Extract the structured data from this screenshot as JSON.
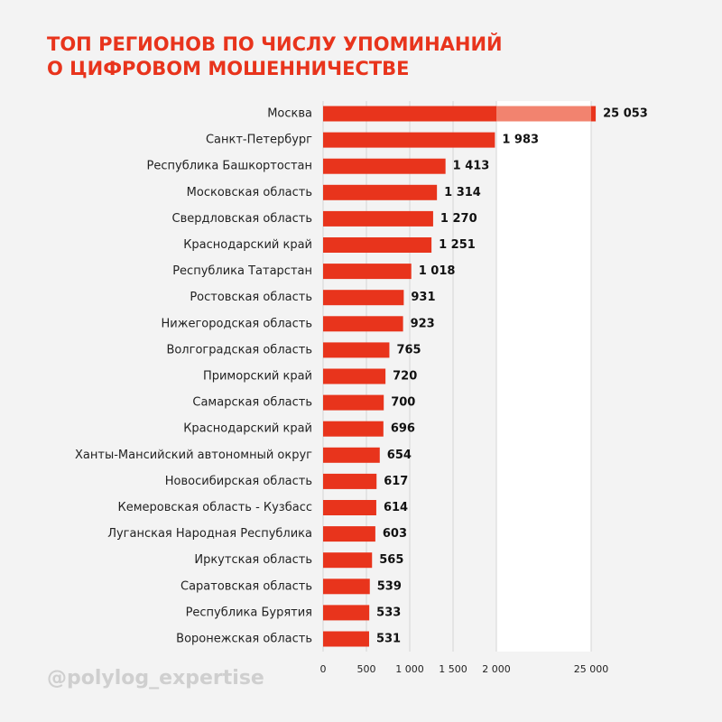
{
  "chart_data": {
    "type": "bar",
    "orientation": "horizontal",
    "title": [
      "ТОП РЕГИОНОВ ПО ЧИСЛУ УПОМИНАНИЙ",
      "О ЦИФРОВОМ МОШЕННИЧЕСТВЕ"
    ],
    "categories": [
      "Москва",
      "Санкт-Петербург",
      "Республика Башкортостан",
      "Московская область",
      "Свердловская область",
      "Краснодарский край",
      "Республика Татарстан",
      "Ростовская область",
      "Нижегородская область",
      "Волгоградская область",
      "Приморский край",
      "Самарская область",
      "Краснодарский край",
      "Ханты-Мансийский автономный округ",
      "Новосибирская область",
      "Кемеровская область - Кузбасс",
      "Луганская Народная Республика",
      "Иркутская область",
      "Саратовская область",
      "Республика Бурятия",
      "Воронежская область"
    ],
    "values": [
      25053,
      1983,
      1413,
      1314,
      1270,
      1251,
      1018,
      931,
      923,
      765,
      720,
      700,
      696,
      654,
      617,
      614,
      603,
      565,
      539,
      533,
      531
    ],
    "value_labels": [
      "25 053",
      "1 983",
      "1 413",
      "1 314",
      "1 270",
      "1 251",
      "1 018",
      "931",
      "923",
      "765",
      "720",
      "700",
      "696",
      "654",
      "617",
      "614",
      "603",
      "565",
      "539",
      "533",
      "531"
    ],
    "color": "#e8341c",
    "xlim": [
      0,
      25000
    ],
    "xticks": [
      0,
      500,
      {
        "value": 1000,
        "label": "1 000"
      },
      {
        "value": 1500,
        "label": "1 500"
      },
      {
        "value": 2000,
        "label": "2 000"
      },
      {
        "value": 25000,
        "label": "25 000"
      }
    ],
    "axis_break": {
      "from": 2000,
      "to": 25000
    },
    "grid": true,
    "footer": "@polylog_expertise"
  }
}
